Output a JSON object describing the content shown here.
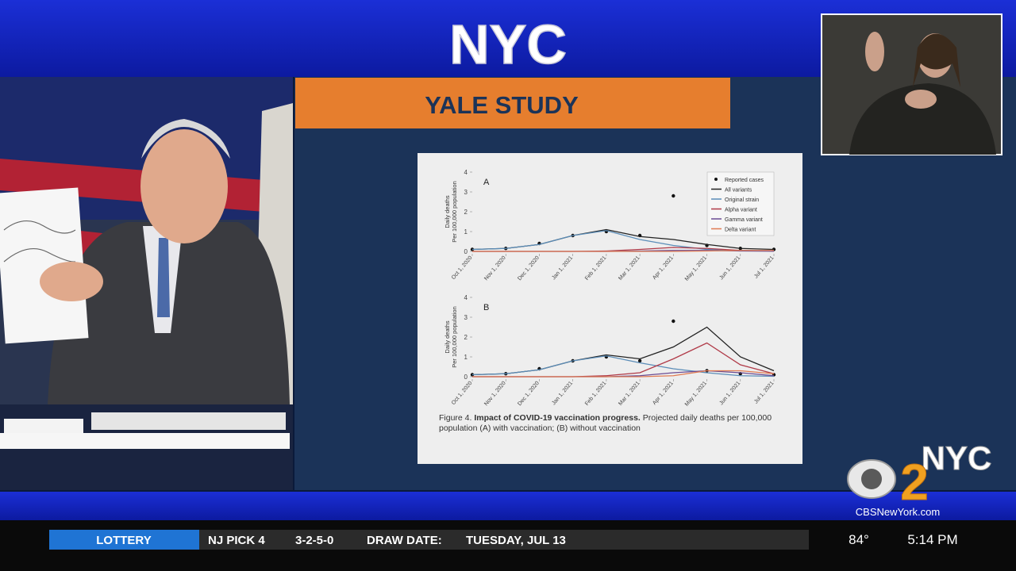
{
  "header": {
    "logo": "NYC"
  },
  "slide": {
    "title": "YALE STUDY"
  },
  "figure_caption": {
    "label": "Figure 4.",
    "bold": "Impact of COVID-19 vaccination progress.",
    "text": "Projected daily deaths per 100,000 population (A) with vaccination; (B) without vaccination"
  },
  "chart_data": [
    {
      "type": "line",
      "panel_label": "A",
      "ylabel": [
        "Daily deaths",
        "Per 100,000 population"
      ],
      "categories": [
        "Oct 1, 2020",
        "Nov 1, 2020",
        "Dec 1, 2020",
        "Jan 1, 2021",
        "Feb 1, 2021",
        "Mar 1, 2021",
        "Apr 1, 2021",
        "May 1, 2021",
        "Jun 1, 2021",
        "Jul 1, 2021"
      ],
      "ylim": [
        0,
        4
      ],
      "yticks": [
        0,
        1,
        2,
        3,
        4
      ],
      "legend": "upper right",
      "series": [
        {
          "name": "Reported cases",
          "style": "points",
          "color": "#111111",
          "values": [
            0.1,
            0.15,
            0.4,
            0.8,
            1.0,
            0.8,
            2.8,
            0.3,
            0.15,
            0.1
          ]
        },
        {
          "name": "All variants",
          "style": "line",
          "color": "#222222",
          "values": [
            0.1,
            0.15,
            0.35,
            0.8,
            1.1,
            0.75,
            0.6,
            0.35,
            0.15,
            0.1
          ]
        },
        {
          "name": "Original strain",
          "style": "line",
          "color": "#5b8db8",
          "values": [
            0.1,
            0.15,
            0.35,
            0.8,
            1.05,
            0.6,
            0.3,
            0.1,
            0.05,
            0.02
          ]
        },
        {
          "name": "Alpha variant",
          "style": "line",
          "color": "#b03a48",
          "values": [
            0,
            0,
            0,
            0,
            0.02,
            0.1,
            0.2,
            0.15,
            0.05,
            0.02
          ]
        },
        {
          "name": "Gamma variant",
          "style": "line",
          "color": "#6a4c93",
          "values": [
            0,
            0,
            0,
            0,
            0,
            0.02,
            0.05,
            0.05,
            0.02,
            0.01
          ]
        },
        {
          "name": "Delta variant",
          "style": "line",
          "color": "#e07b53",
          "values": [
            0,
            0,
            0,
            0,
            0,
            0,
            0,
            0.02,
            0.05,
            0.05
          ]
        }
      ]
    },
    {
      "type": "line",
      "panel_label": "B",
      "ylabel": [
        "Daily deaths",
        "Per 100,000 population"
      ],
      "categories": [
        "Oct 1, 2020",
        "Nov 1, 2020",
        "Dec 1, 2020",
        "Jan 1, 2021",
        "Feb 1, 2021",
        "Mar 1, 2021",
        "Apr 1, 2021",
        "May 1, 2021",
        "Jun 1, 2021",
        "Jul 1, 2021"
      ],
      "ylim": [
        0,
        4
      ],
      "yticks": [
        0,
        1,
        2,
        3,
        4
      ],
      "series": [
        {
          "style": "points",
          "color": "#111111",
          "values": [
            0.1,
            0.15,
            0.4,
            0.8,
            1.0,
            0.8,
            2.8,
            0.3,
            0.15,
            0.1
          ]
        },
        {
          "style": "line",
          "color": "#222222",
          "values": [
            0.1,
            0.15,
            0.35,
            0.8,
            1.1,
            0.9,
            1.5,
            2.5,
            1.0,
            0.3
          ]
        },
        {
          "style": "line",
          "color": "#5b8db8",
          "values": [
            0.1,
            0.15,
            0.35,
            0.8,
            1.05,
            0.7,
            0.4,
            0.2,
            0.05,
            0.02
          ]
        },
        {
          "style": "line",
          "color": "#b03a48",
          "values": [
            0,
            0,
            0,
            0,
            0.05,
            0.2,
            0.9,
            1.7,
            0.6,
            0.15
          ]
        },
        {
          "style": "line",
          "color": "#6a4c93",
          "values": [
            0,
            0,
            0,
            0,
            0,
            0.05,
            0.2,
            0.3,
            0.2,
            0.05
          ]
        },
        {
          "style": "line",
          "color": "#e07b53",
          "values": [
            0,
            0,
            0,
            0,
            0,
            0,
            0.05,
            0.3,
            0.3,
            0.15
          ]
        }
      ]
    }
  ],
  "broadcast": {
    "station_logo": "NYC",
    "channel": "2",
    "website": "CBSNewYork.com"
  },
  "ticker": {
    "section": "LOTTERY",
    "game": "NJ PICK 4",
    "numbers": "3-2-5-0",
    "draw_label": "DRAW DATE:",
    "draw_date": "TUESDAY, JUL 13",
    "temperature": "84°",
    "time": "5:14 PM"
  }
}
